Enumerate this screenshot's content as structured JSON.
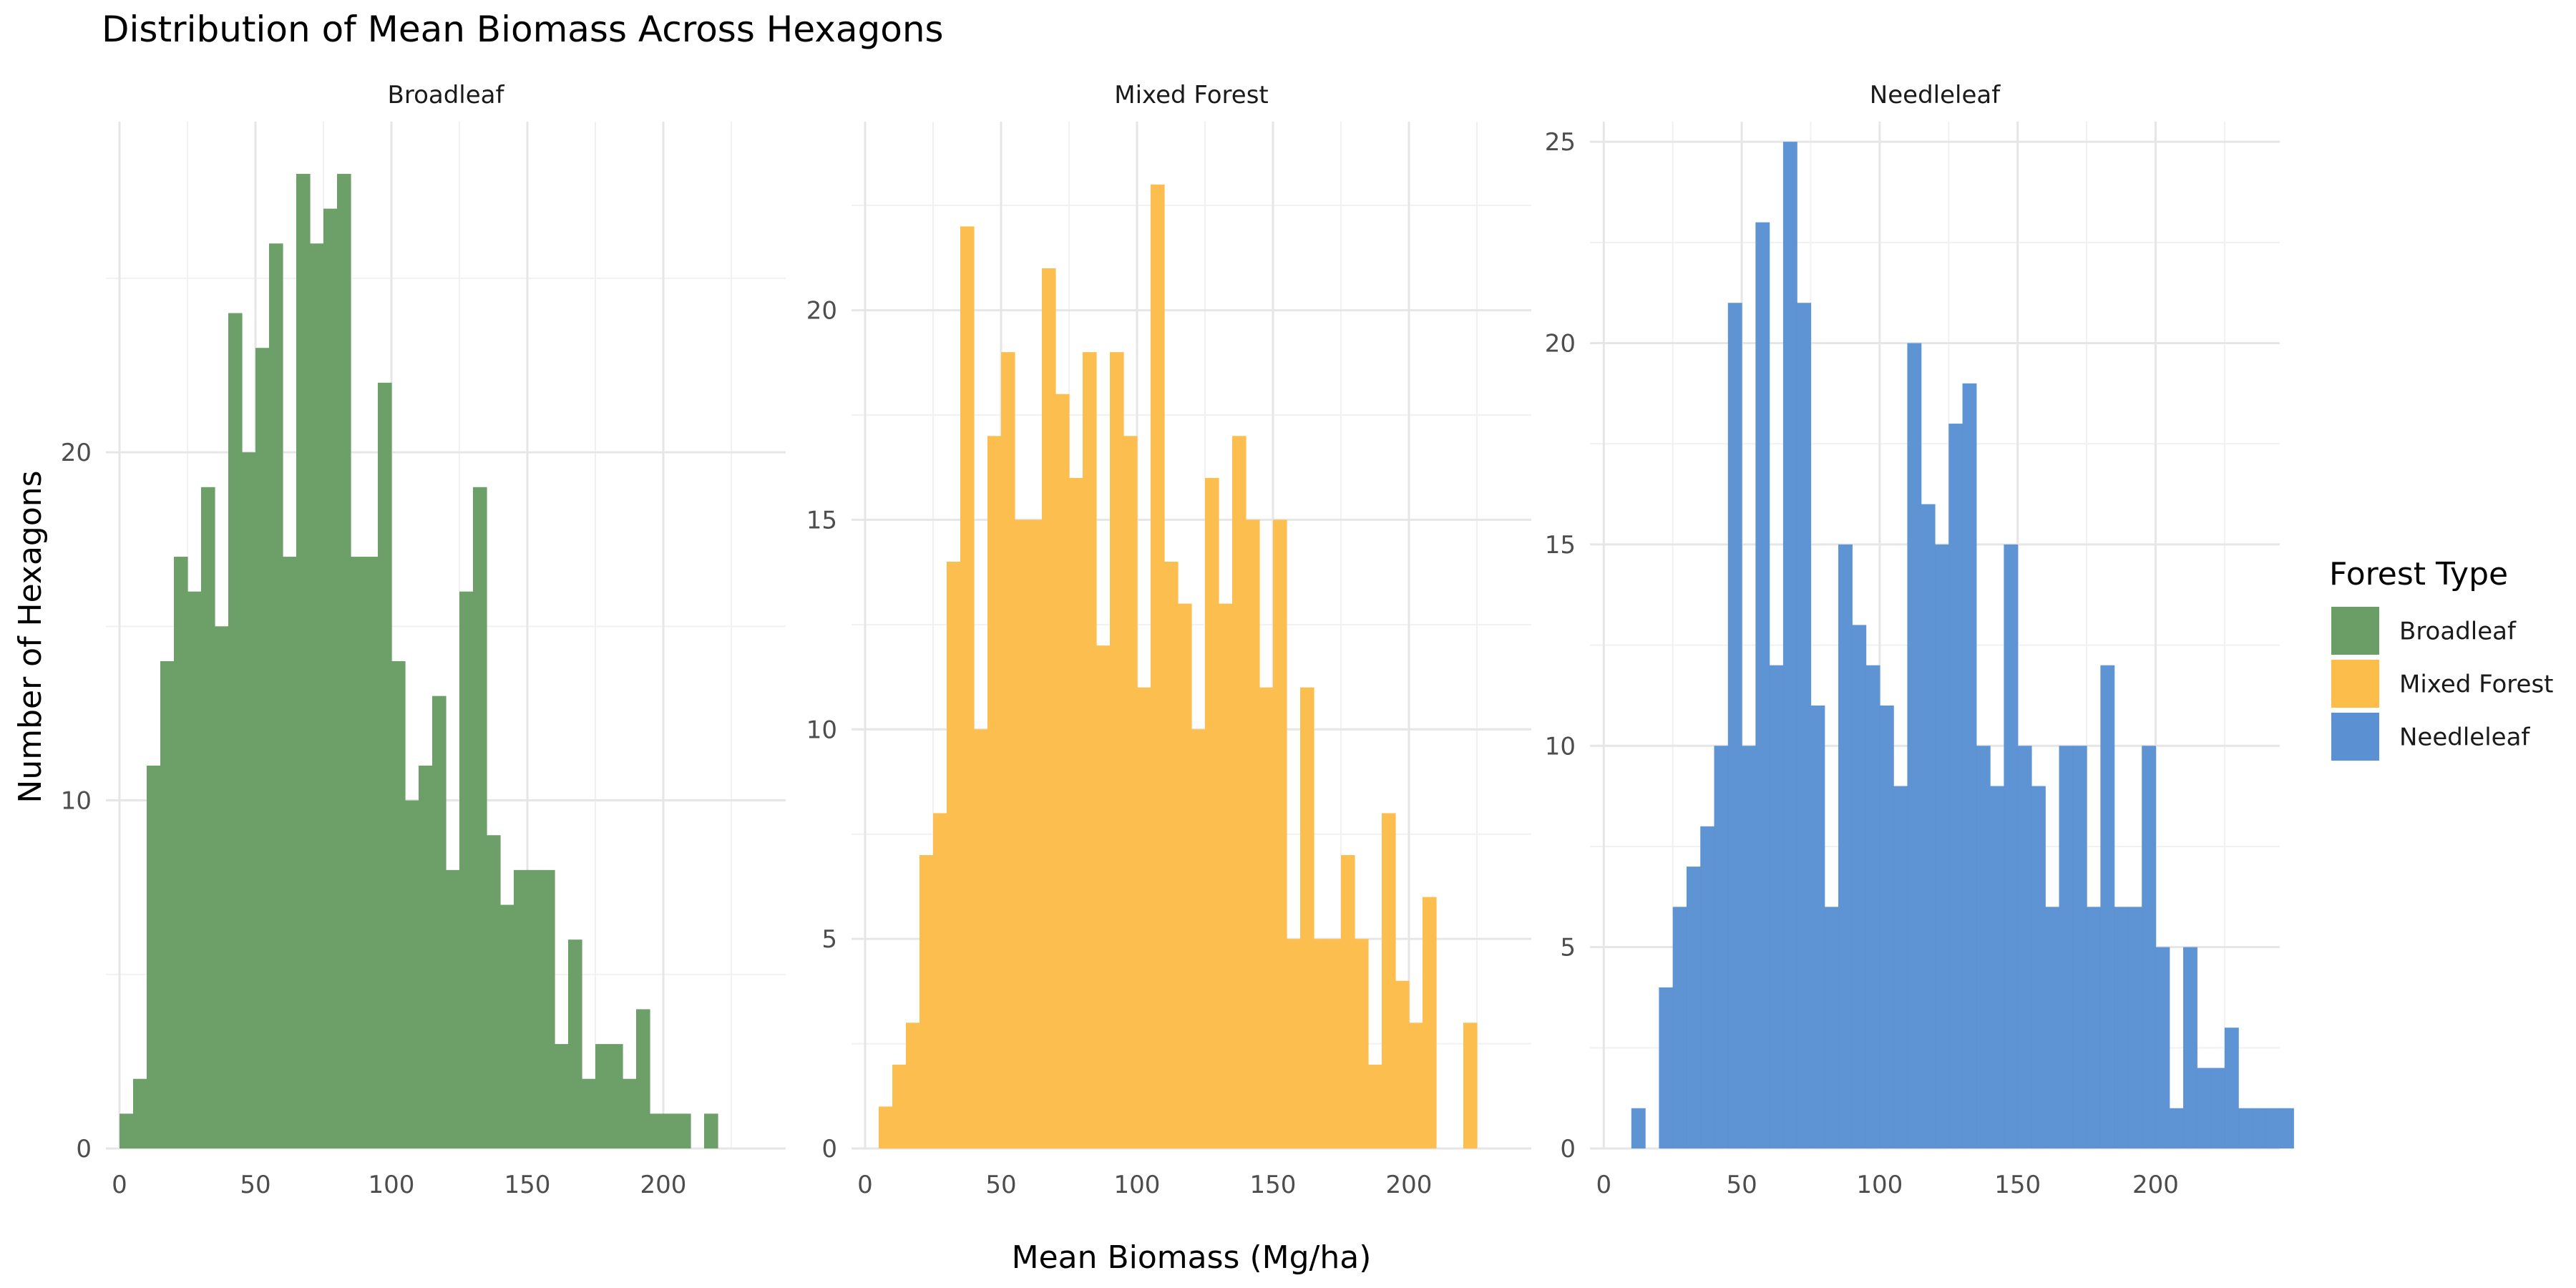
{
  "chart_data": {
    "type": "bar",
    "title": "Distribution of Mean Biomass Across Hexagons",
    "xlabel": "Mean Biomass (Mg/ha)",
    "ylabel": "Number of Hexagons",
    "xlim": [
      -5,
      245
    ],
    "bin_width": 5,
    "grid": true,
    "legend": {
      "title": "Forest Type",
      "placement": "right",
      "items": [
        {
          "label": "Broadleaf",
          "color": "#6a9e66"
        },
        {
          "label": "Mixed Forest",
          "color": "#fcbd4a"
        },
        {
          "label": "Needleleaf",
          "color": "#5b91d3"
        }
      ]
    },
    "panels": [
      {
        "name": "Broadleaf",
        "color": "#6a9e66",
        "ylim": [
          0,
          29.5
        ],
        "yticks": [
          0,
          10,
          20
        ],
        "xticks": [
          0,
          50,
          100,
          150,
          200
        ],
        "bin_start": 0,
        "counts": [
          1,
          2,
          11,
          14,
          17,
          16,
          19,
          15,
          24,
          20,
          23,
          26,
          17,
          28,
          26,
          27,
          28,
          17,
          17,
          22,
          14,
          10,
          11,
          13,
          8,
          16,
          19,
          9,
          7,
          8,
          8,
          8,
          3,
          6,
          2,
          3,
          3,
          2,
          4,
          1,
          1,
          1,
          0,
          1
        ]
      },
      {
        "name": "Mixed Forest",
        "color": "#fcbd4a",
        "ylim": [
          0,
          24.5
        ],
        "yticks": [
          0,
          5,
          10,
          15,
          20
        ],
        "xticks": [
          0,
          50,
          100,
          150,
          200
        ],
        "bin_start": 5,
        "counts": [
          1,
          2,
          3,
          7,
          8,
          14,
          22,
          10,
          17,
          19,
          15,
          15,
          21,
          18,
          16,
          19,
          12,
          19,
          17,
          11,
          23,
          14,
          13,
          10,
          16,
          13,
          17,
          15,
          11,
          15,
          5,
          11,
          5,
          5,
          7,
          5,
          2,
          8,
          4,
          3,
          6,
          0,
          0,
          3
        ]
      },
      {
        "name": "Needleleaf",
        "color": "#5b91d3",
        "ylim": [
          0,
          25.5
        ],
        "yticks": [
          0,
          5,
          10,
          15,
          20,
          25
        ],
        "xticks": [
          0,
          50,
          100,
          150,
          200
        ],
        "bin_start": 10,
        "counts": [
          1,
          0,
          4,
          6,
          7,
          8,
          10,
          21,
          10,
          23,
          12,
          25,
          21,
          11,
          6,
          15,
          13,
          12,
          11,
          9,
          20,
          16,
          15,
          18,
          19,
          10,
          9,
          15,
          10,
          9,
          6,
          10,
          10,
          6,
          12,
          6,
          6,
          10,
          5,
          1,
          5,
          2,
          2,
          3,
          1,
          1,
          1,
          1
        ]
      }
    ]
  }
}
